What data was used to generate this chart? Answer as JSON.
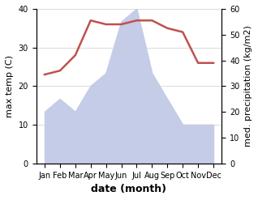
{
  "months": [
    "Jan",
    "Feb",
    "Mar",
    "Apr",
    "May",
    "Jun",
    "Jul",
    "Aug",
    "Sep",
    "Oct",
    "Nov",
    "Dec"
  ],
  "temperature": [
    23,
    24,
    28,
    37,
    36,
    36,
    37,
    37,
    35,
    34,
    26,
    26
  ],
  "precipitation": [
    20,
    25,
    20,
    30,
    35,
    55,
    60,
    35,
    25,
    15,
    15,
    15
  ],
  "temp_color": "#c0504d",
  "precip_fill_color": "#c5cce8",
  "ylabel_left": "max temp (C)",
  "ylabel_right": "med. precipitation (kg/m2)",
  "xlabel": "date (month)",
  "ylim_left": [
    0,
    40
  ],
  "ylim_right": [
    0,
    60
  ],
  "yticks_left": [
    0,
    10,
    20,
    30,
    40
  ],
  "yticks_right": [
    0,
    10,
    20,
    30,
    40,
    50,
    60
  ],
  "background_color": "#ffffff",
  "temp_linewidth": 1.8,
  "xlabel_fontsize": 9,
  "ylabel_fontsize": 8
}
